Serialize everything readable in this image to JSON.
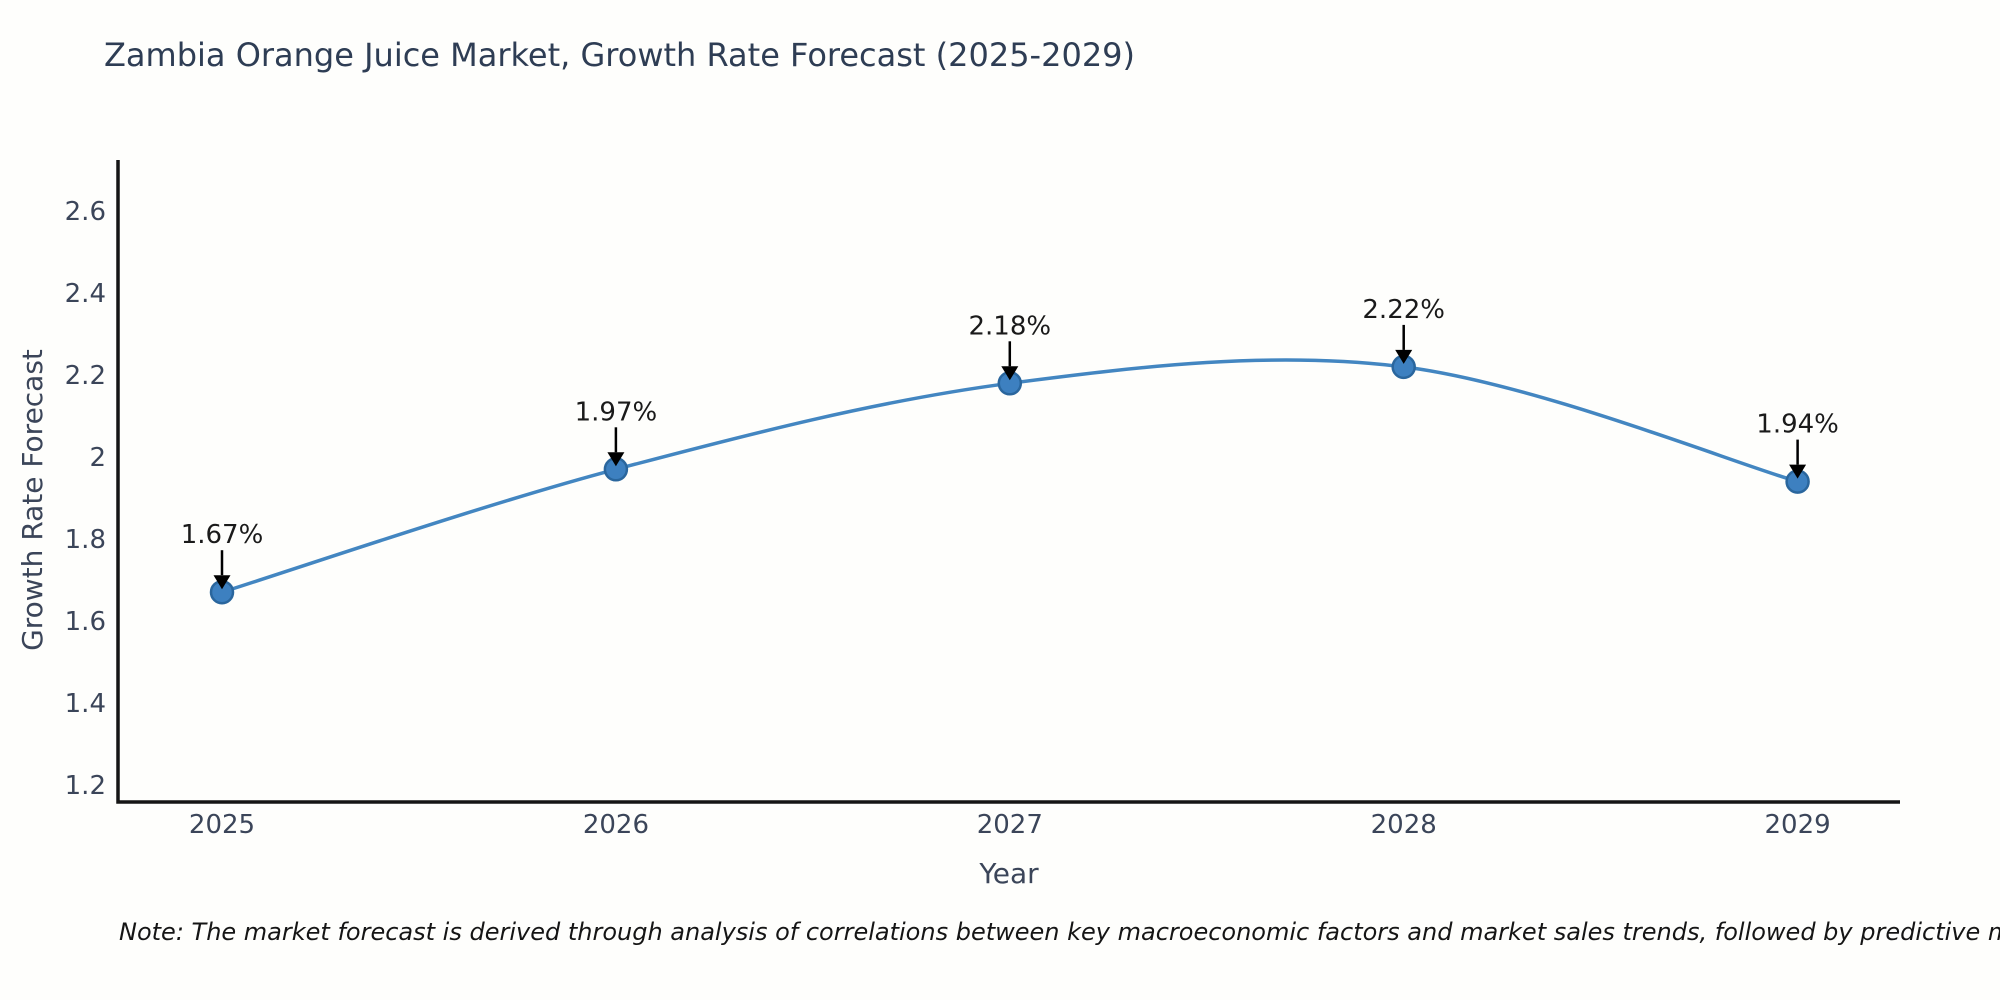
{
  "header": {
    "title": "Zambia Orange Juice Market, Growth Rate Forecast (2025-2029)"
  },
  "footnote": {
    "text": "Note: The market forecast is derived through analysis of correlations between key macroeconomic factors and market sales trends, followed by predictive modeling to project future sales"
  },
  "chart_data": {
    "type": "line",
    "line_shape": "spline",
    "title": "Zambia Orange Juice Market, Growth Rate Forecast (2025-2029)",
    "xlabel": "Year",
    "ylabel": "Growth Rate Forecast",
    "x": [
      2025,
      2026,
      2027,
      2028,
      2029
    ],
    "values": [
      1.67,
      1.97,
      2.18,
      2.22,
      1.94
    ],
    "point_labels": [
      "1.67%",
      "1.97%",
      "2.18%",
      "2.22%",
      "1.94%"
    ],
    "xtick_labels": [
      "2025",
      "2026",
      "2027",
      "2028",
      "2029"
    ],
    "yticks": [
      1.2,
      1.4,
      1.6,
      1.8,
      2,
      2.2,
      2.4,
      2.6
    ],
    "ytick_labels": [
      "1.2",
      "1.4",
      "1.6",
      "1.8",
      "2",
      "2.2",
      "2.4",
      "2.6"
    ],
    "xlim": [
      2024.736,
      2029.26
    ],
    "ylim": [
      1.158,
      2.725
    ],
    "grid": false,
    "legend": false,
    "colors": {
      "line": "#4386c1",
      "marker_fill": "#3d80c0",
      "marker_edge": "#2a669d",
      "axis": "#151515",
      "tick_text": "#3b4559",
      "title_text": "#2e3d54",
      "annotation": "#000000",
      "background": "#fefefc"
    }
  }
}
